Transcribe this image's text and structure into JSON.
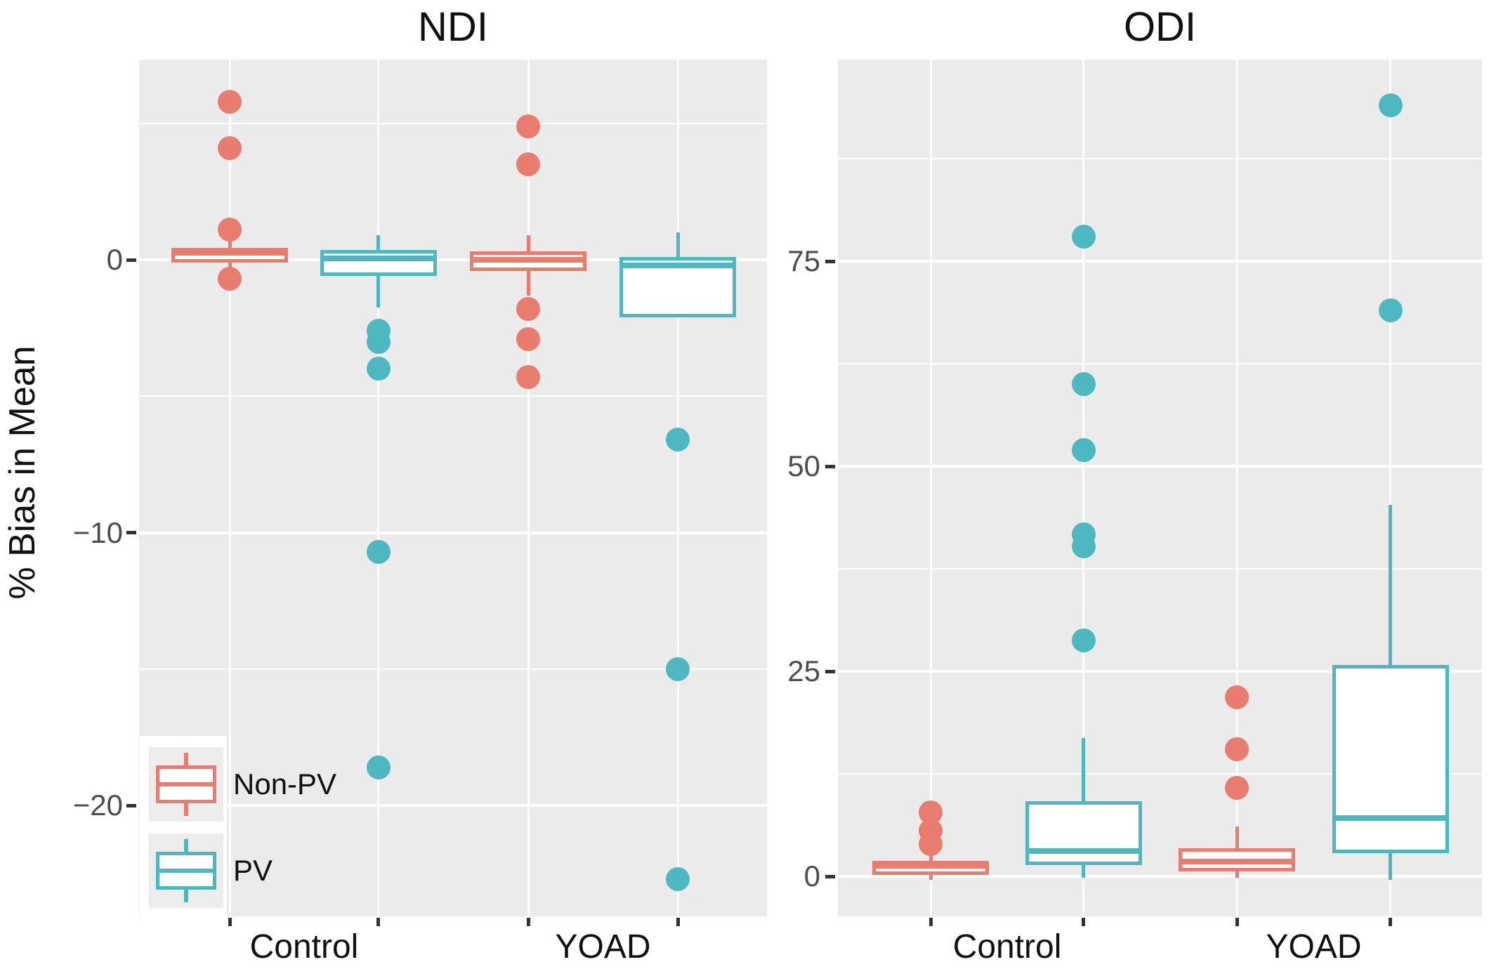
{
  "titles": {
    "left": "NDI",
    "right": "ODI"
  },
  "y_axis": {
    "label": "% Bias in Mean"
  },
  "legend": {
    "items": [
      {
        "label": "Non-PV",
        "color": "#E87C6E"
      },
      {
        "label": "PV",
        "color": "#4DB8C0"
      }
    ]
  },
  "chart_data": [
    {
      "type": "box",
      "title": "NDI",
      "x_categories": [
        "Control",
        "YOAD"
      ],
      "ylabel": "% Bias in Mean",
      "ylim": [
        -24.1,
        7.3
      ],
      "grid": true,
      "y_ticks": [
        {
          "value": 0,
          "label": "0"
        },
        {
          "value": -10,
          "label": "−10"
        },
        {
          "value": -20,
          "label": "−20"
        }
      ],
      "y_minor_gridlines": [
        5,
        -5,
        -15
      ],
      "series": [
        {
          "name": "Non-PV",
          "color": "#E87C6E",
          "boxes": [
            {
              "group": "Control",
              "whisker_low": -0.6,
              "q1": -0.1,
              "median": 0.25,
              "q3": 0.45,
              "whisker_high": 0.8,
              "outliers": [
                5.8,
                4.1,
                1.1,
                -0.7
              ]
            },
            {
              "group": "YOAD",
              "whisker_low": -1.3,
              "q1": -0.4,
              "median": 0.0,
              "q3": 0.3,
              "whisker_high": 0.9,
              "outliers": [
                4.9,
                3.5,
                -1.8,
                -2.9,
                -4.3
              ]
            }
          ]
        },
        {
          "name": "PV",
          "color": "#4DB8C0",
          "boxes": [
            {
              "group": "Control",
              "whisker_low": -1.75,
              "q1": -0.6,
              "median": 0.05,
              "q3": 0.35,
              "whisker_high": 0.9,
              "outliers": [
                -2.6,
                -3.0,
                -4.0,
                -10.7,
                -18.6
              ]
            },
            {
              "group": "YOAD",
              "whisker_low": -2.1,
              "q1": -2.1,
              "median": -0.2,
              "q3": 0.1,
              "whisker_high": 1.0,
              "outliers": [
                -6.6,
                -15.0,
                -22.7
              ]
            }
          ]
        }
      ]
    },
    {
      "type": "box",
      "title": "ODI",
      "x_categories": [
        "Control",
        "YOAD"
      ],
      "ylabel": "% Bias in Mean",
      "ylim": [
        -4.9,
        99.6
      ],
      "grid": true,
      "y_ticks": [
        {
          "value": 75,
          "label": "75"
        },
        {
          "value": 50,
          "label": "50"
        },
        {
          "value": 25,
          "label": "25"
        },
        {
          "value": 0,
          "label": "0"
        }
      ],
      "y_minor_gridlines": [
        87.5,
        62.5,
        37.5,
        12.5
      ],
      "series": [
        {
          "name": "Non-PV",
          "color": "#E87C6E",
          "boxes": [
            {
              "group": "Control",
              "whisker_low": -0.4,
              "q1": 0.2,
              "median": 1.3,
              "q3": 1.9,
              "whisker_high": 3.0,
              "outliers": [
                7.8,
                5.6,
                3.9
              ]
            },
            {
              "group": "YOAD",
              "whisker_low": -0.2,
              "q1": 0.6,
              "median": 1.8,
              "q3": 3.4,
              "whisker_high": 6.1,
              "outliers": [
                21.8,
                15.5,
                10.8
              ]
            }
          ]
        },
        {
          "name": "PV",
          "color": "#4DB8C0",
          "boxes": [
            {
              "group": "Control",
              "whisker_low": -0.2,
              "q1": 1.4,
              "median": 3.1,
              "q3": 9.2,
              "whisker_high": 16.9,
              "outliers": [
                78,
                60,
                52,
                41.7,
                40.2,
                28.8
              ]
            },
            {
              "group": "YOAD",
              "whisker_low": -0.4,
              "q1": 2.8,
              "median": 7.1,
              "q3": 25.8,
              "whisker_high": 45.3,
              "outliers": [
                94,
                69
              ]
            }
          ]
        }
      ]
    }
  ]
}
